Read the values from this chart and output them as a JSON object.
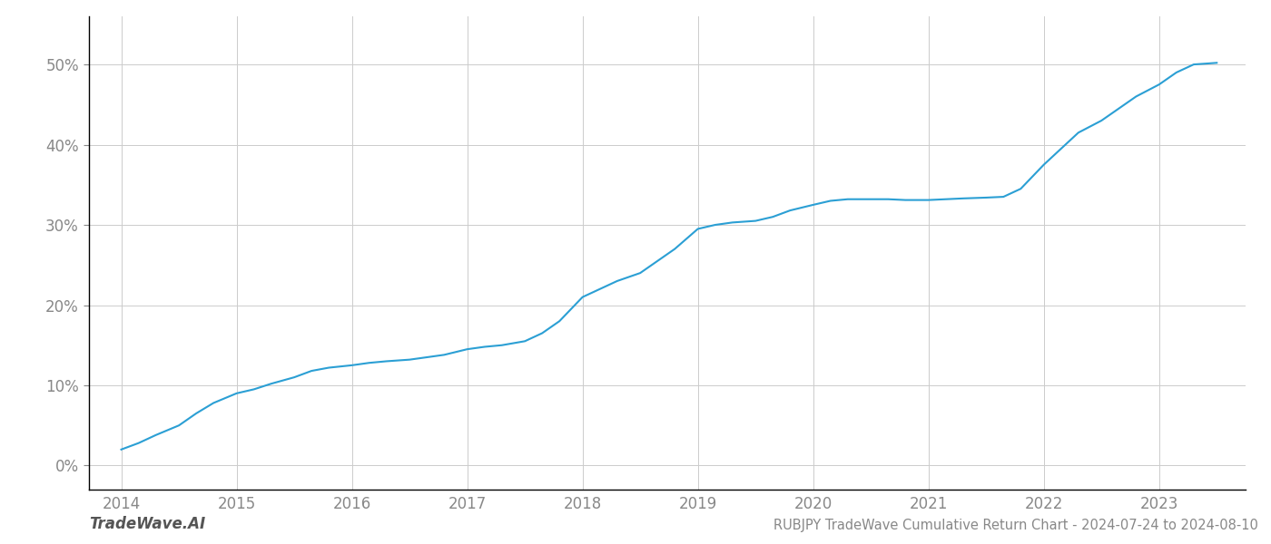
{
  "title": "RUBJPY TradeWave Cumulative Return Chart - 2024-07-24 to 2024-08-10",
  "watermark": "TradeWave.AI",
  "line_color": "#2b9fd4",
  "background_color": "#ffffff",
  "grid_color": "#cccccc",
  "x_values": [
    2014.0,
    2014.15,
    2014.3,
    2014.5,
    2014.65,
    2014.8,
    2015.0,
    2015.15,
    2015.3,
    2015.5,
    2015.65,
    2015.8,
    2016.0,
    2016.15,
    2016.3,
    2016.5,
    2016.65,
    2016.8,
    2017.0,
    2017.15,
    2017.3,
    2017.5,
    2017.65,
    2017.8,
    2018.0,
    2018.15,
    2018.3,
    2018.5,
    2018.65,
    2018.8,
    2019.0,
    2019.15,
    2019.3,
    2019.5,
    2019.65,
    2019.8,
    2020.0,
    2020.15,
    2020.3,
    2020.5,
    2020.65,
    2020.8,
    2021.0,
    2021.15,
    2021.3,
    2021.5,
    2021.65,
    2021.8,
    2022.0,
    2022.15,
    2022.3,
    2022.5,
    2022.65,
    2022.8,
    2023.0,
    2023.15,
    2023.3,
    2023.5
  ],
  "y_values": [
    2.0,
    2.8,
    3.8,
    5.0,
    6.5,
    7.8,
    9.0,
    9.5,
    10.2,
    11.0,
    11.8,
    12.2,
    12.5,
    12.8,
    13.0,
    13.2,
    13.5,
    13.8,
    14.5,
    14.8,
    15.0,
    15.5,
    16.5,
    18.0,
    21.0,
    22.0,
    23.0,
    24.0,
    25.5,
    27.0,
    29.5,
    30.0,
    30.3,
    30.5,
    31.0,
    31.8,
    32.5,
    33.0,
    33.2,
    33.2,
    33.2,
    33.1,
    33.1,
    33.2,
    33.3,
    33.4,
    33.5,
    34.5,
    37.5,
    39.5,
    41.5,
    43.0,
    44.5,
    46.0,
    47.5,
    49.0,
    50.0,
    50.2
  ],
  "xlim": [
    2013.72,
    2023.75
  ],
  "ylim": [
    -3,
    56
  ],
  "xticks": [
    2014,
    2015,
    2016,
    2017,
    2018,
    2019,
    2020,
    2021,
    2022,
    2023
  ],
  "yticks": [
    0,
    10,
    20,
    30,
    40,
    50
  ],
  "line_width": 1.5,
  "title_fontsize": 10.5,
  "tick_fontsize": 12,
  "watermark_fontsize": 12
}
